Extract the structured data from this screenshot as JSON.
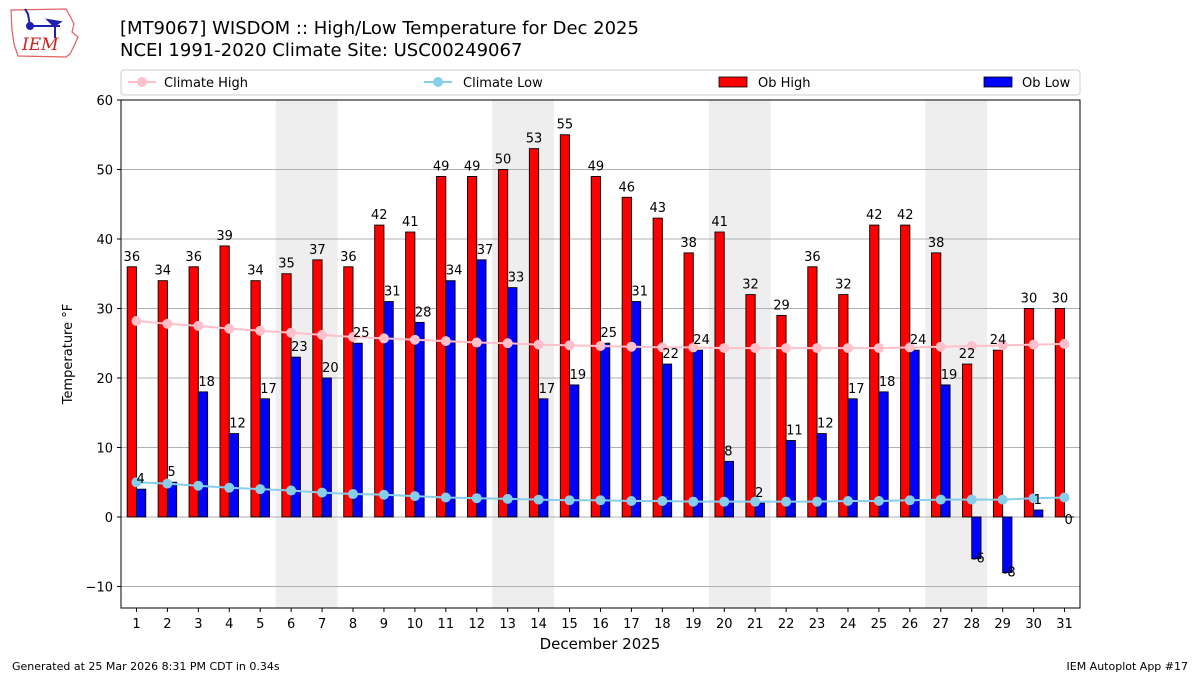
{
  "header": {
    "title_line1": "[MT9067] WISDOM :: High/Low Temperature for Dec 2025",
    "title_line2": "NCEI 1991-2020 Climate Site: USC00249067",
    "logo_text": "IEM"
  },
  "footer": {
    "generated": "Generated at 25 Mar 2026 8:31 PM CDT in 0.34s",
    "app": "IEM Autoplot App #17"
  },
  "colors": {
    "ob_high": "#ff0000",
    "ob_low": "#0000ff",
    "climate_high": "#ffc0cb",
    "climate_low": "#87ceeb",
    "weekend_shade": "#eeeeee",
    "grid": "#b0b0b0"
  },
  "chart_data": {
    "type": "bar",
    "title": "[MT9067] WISDOM :: High/Low Temperature for Dec 2025",
    "subtitle": "NCEI 1991-2020 Climate Site: USC00249067",
    "xlabel": "December 2025",
    "ylabel": "Temperature °F",
    "xlim": [
      0.5,
      31.5
    ],
    "ylim": [
      -13.1,
      60
    ],
    "yticks": [
      -10,
      0,
      10,
      20,
      30,
      40,
      50,
      60
    ],
    "grid": "horizontal",
    "legend_position": "top, above plot (4 columns)",
    "legend": [
      "Climate High",
      "Climate Low",
      "Ob High",
      "Ob Low"
    ],
    "categories": [
      "1",
      "2",
      "3",
      "4",
      "5",
      "6",
      "7",
      "8",
      "9",
      "10",
      "11",
      "12",
      "13",
      "14",
      "15",
      "16",
      "17",
      "18",
      "19",
      "20",
      "21",
      "22",
      "23",
      "24",
      "25",
      "26",
      "27",
      "28",
      "29",
      "30",
      "31"
    ],
    "shaded_periods": [
      [
        6,
        7
      ],
      [
        13,
        14
      ],
      [
        20,
        21
      ],
      [
        27,
        28
      ]
    ],
    "series": [
      {
        "name": "Ob High",
        "kind": "bar",
        "values": [
          36,
          34,
          36,
          39,
          34,
          35,
          37,
          36,
          42,
          41,
          49,
          49,
          50,
          53,
          55,
          49,
          46,
          43,
          38,
          41,
          32,
          29,
          36,
          32,
          42,
          42,
          38,
          22,
          24,
          30,
          30
        ]
      },
      {
        "name": "Ob Low",
        "kind": "bar",
        "values": [
          4,
          5,
          18,
          12,
          17,
          23,
          20,
          25,
          31,
          28,
          34,
          37,
          33,
          17,
          19,
          25,
          31,
          22,
          24,
          8,
          2,
          11,
          12,
          17,
          18,
          24,
          19,
          -6,
          -8,
          1,
          0
        ]
      },
      {
        "name": "Climate High",
        "kind": "line",
        "values": [
          28.2,
          27.8,
          27.5,
          27.1,
          26.8,
          26.5,
          26.2,
          25.9,
          25.7,
          25.5,
          25.3,
          25.1,
          25.0,
          24.8,
          24.7,
          24.6,
          24.5,
          24.4,
          24.4,
          24.3,
          24.3,
          24.3,
          24.3,
          24.3,
          24.3,
          24.4,
          24.5,
          24.6,
          24.7,
          24.8,
          24.9
        ]
      },
      {
        "name": "Climate Low",
        "kind": "line",
        "values": [
          5.0,
          4.8,
          4.5,
          4.2,
          4.0,
          3.8,
          3.5,
          3.3,
          3.2,
          3.0,
          2.8,
          2.7,
          2.6,
          2.5,
          2.4,
          2.4,
          2.3,
          2.3,
          2.2,
          2.2,
          2.2,
          2.2,
          2.2,
          2.3,
          2.3,
          2.4,
          2.5,
          2.5,
          2.5,
          2.7,
          2.8
        ]
      }
    ]
  }
}
